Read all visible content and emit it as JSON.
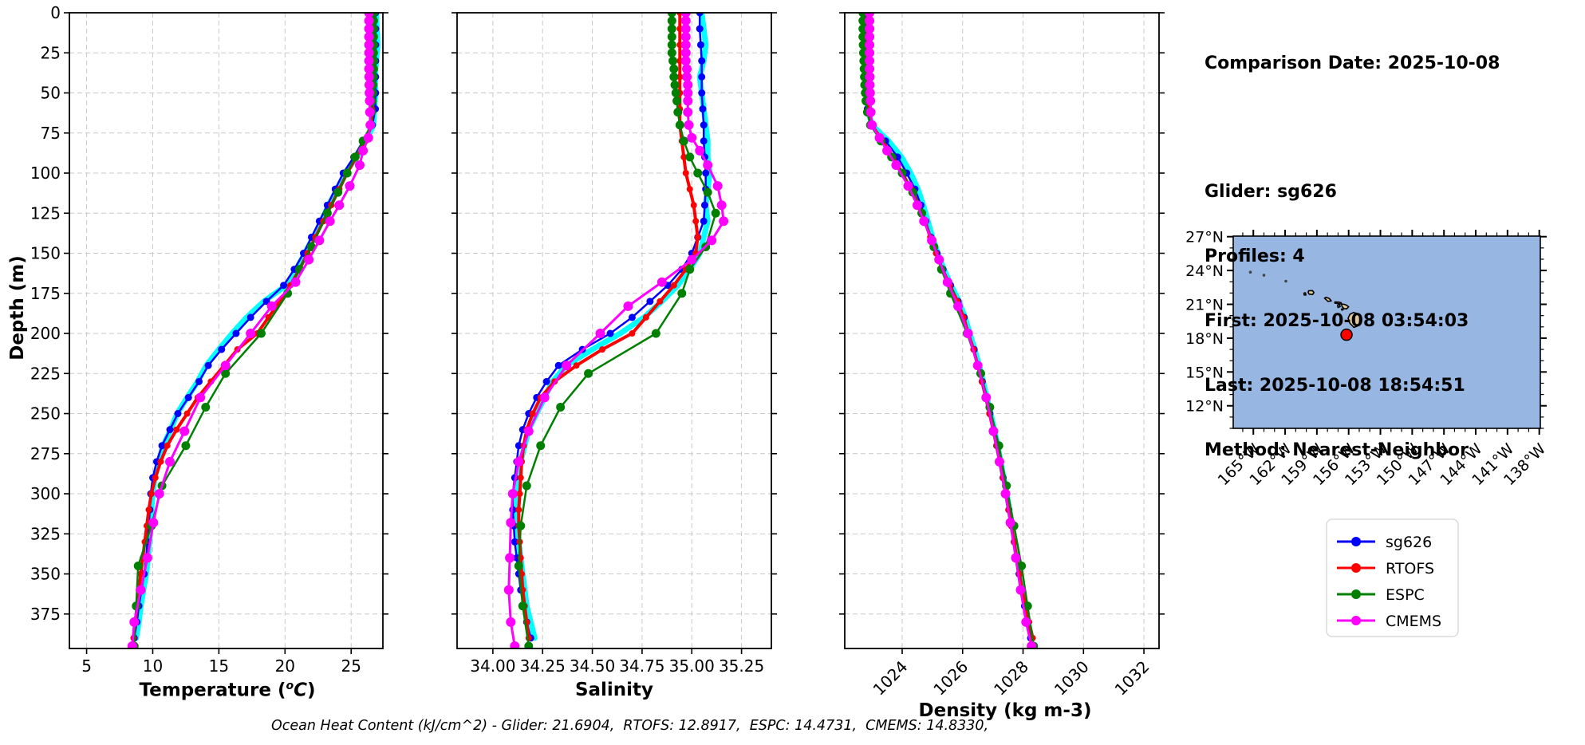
{
  "info_panel": {
    "date_line": "Comparison Date: 2025-10-08",
    "glider_line": "Glider: sg626",
    "profiles_line": "Profiles: 4",
    "first_line": "First: 2025-10-08 03:54:03",
    "last_line": "Last: 2025-10-08 18:54:51",
    "method_line": "Method: Nearest-Neighbor"
  },
  "caption": "Ocean Heat Content (kJ/cm^2) - Glider: 21.6904,  RTOFS: 12.8917,  ESPC: 14.4731,  CMEMS: 14.8330,",
  "chart_data": {
    "type": "line",
    "grid": true,
    "grid_style": "dashed",
    "ylabel": "Depth (m)",
    "ylim": [
      0,
      396.5
    ],
    "ytick_values": [
      0,
      25,
      50,
      75,
      100,
      125,
      150,
      175,
      200,
      225,
      250,
      275,
      300,
      325,
      350,
      375
    ],
    "ytick_labels": [
      "0",
      "25",
      "50",
      "75",
      "100",
      "125",
      "150",
      "175",
      "200",
      "225",
      "250",
      "275",
      "300",
      "325",
      "350",
      "375"
    ],
    "panels": [
      {
        "id": "temperature",
        "var": "temperature",
        "xlabel_prefix": "Temperature (",
        "xlabel_sup": "o",
        "xlabel_mid": "C",
        "xlabel_suffix": ")",
        "xlim": [
          3.7,
          27.4
        ],
        "tick_values": [
          5,
          10,
          15,
          20,
          25
        ],
        "tick_labels": [
          "5",
          "10",
          "15",
          "20",
          "25"
        ],
        "rotate_ticks": false
      },
      {
        "id": "salinity",
        "var": "salinity",
        "xlabel": "Salinity",
        "xlim": [
          33.82,
          35.4
        ],
        "tick_values": [
          34.0,
          34.25,
          34.5,
          34.75,
          35.0,
          35.25
        ],
        "tick_labels": [
          "34.00",
          "34.25",
          "34.50",
          "34.75",
          "35.00",
          "35.25"
        ],
        "rotate_ticks": false
      },
      {
        "id": "density",
        "var": "density",
        "xlabel": "Density (kg m-3)",
        "xlim": [
          1022.1,
          1032.5
        ],
        "tick_values": [
          1024,
          1026,
          1028,
          1030,
          1032
        ],
        "tick_labels": [
          "1024",
          "1026",
          "1028",
          "1030",
          "1032"
        ],
        "rotate_ticks": true
      }
    ],
    "series": [
      {
        "name": "sg626_raw",
        "legend": false,
        "color": "#00ffff",
        "line_width": 7,
        "marker_r": 0,
        "depths": [
          0,
          10,
          20,
          30,
          40,
          50,
          60,
          70,
          80,
          90,
          100,
          110,
          120,
          130,
          140,
          150,
          160,
          170,
          180,
          190,
          200,
          210,
          220,
          230,
          240,
          250,
          260,
          270,
          280,
          290,
          300,
          310,
          320,
          330,
          340,
          350,
          360,
          370,
          380,
          390
        ],
        "temperature": [
          26.9,
          26.95,
          27.0,
          26.9,
          26.8,
          26.85,
          26.75,
          26.7,
          26.1,
          25.4,
          24.55,
          23.95,
          23.3,
          22.75,
          22.15,
          21.5,
          20.85,
          20.1,
          18.4,
          17.1,
          16.0,
          15.0,
          14.05,
          13.4,
          12.6,
          11.85,
          11.35,
          10.8,
          10.45,
          10.15,
          10.0,
          9.9,
          9.85,
          9.75,
          9.65,
          9.5,
          9.3,
          9.1,
          8.95,
          8.75
        ],
        "salinity": [
          35.05,
          35.06,
          35.07,
          35.06,
          35.04,
          35.05,
          35.06,
          35.07,
          35.08,
          35.08,
          35.09,
          35.08,
          35.07,
          35.08,
          35.06,
          35.04,
          34.99,
          34.93,
          34.85,
          34.76,
          34.64,
          34.5,
          34.37,
          34.3,
          34.26,
          34.22,
          34.18,
          34.16,
          34.14,
          34.13,
          34.12,
          34.11,
          34.12,
          34.13,
          34.14,
          34.15,
          34.16,
          34.17,
          34.19,
          34.21
        ],
        "density": [
          1022.82,
          1022.84,
          1022.85,
          1022.83,
          1022.8,
          1022.82,
          1022.86,
          1023.0,
          1023.55,
          1023.98,
          1024.28,
          1024.52,
          1024.7,
          1024.85,
          1025.0,
          1025.18,
          1025.38,
          1025.62,
          1025.88,
          1026.08,
          1026.24,
          1026.4,
          1026.55,
          1026.68,
          1026.8,
          1026.93,
          1027.05,
          1027.16,
          1027.26,
          1027.36,
          1027.46,
          1027.55,
          1027.64,
          1027.73,
          1027.81,
          1027.89,
          1027.97,
          1028.07,
          1028.17,
          1028.28
        ]
      },
      {
        "name": "sg626",
        "color": "#0000ff",
        "line_width": 2.5,
        "marker_r": 4.5,
        "depths": [
          0,
          10,
          20,
          30,
          40,
          50,
          60,
          70,
          80,
          90,
          100,
          110,
          120,
          130,
          140,
          150,
          160,
          170,
          180,
          190,
          200,
          210,
          220,
          230,
          240,
          250,
          260,
          270,
          280,
          290,
          300,
          310,
          320,
          330,
          340,
          350,
          360,
          370,
          380,
          390
        ],
        "temperature": [
          26.85,
          26.85,
          26.85,
          26.85,
          26.85,
          26.85,
          26.83,
          26.6,
          25.9,
          25.2,
          24.4,
          23.8,
          23.2,
          22.6,
          22.0,
          21.4,
          20.7,
          19.9,
          18.6,
          17.4,
          16.3,
          15.2,
          14.2,
          13.5,
          12.7,
          11.9,
          11.3,
          10.7,
          10.3,
          10.0,
          9.85,
          9.78,
          9.7,
          9.6,
          9.5,
          9.35,
          9.15,
          8.95,
          8.8,
          8.6
        ],
        "salinity": [
          35.04,
          35.04,
          35.045,
          35.05,
          35.05,
          35.05,
          35.055,
          35.06,
          35.06,
          35.065,
          35.07,
          35.07,
          35.065,
          35.06,
          35.03,
          35.0,
          34.95,
          34.88,
          34.79,
          34.7,
          34.59,
          34.45,
          34.33,
          34.27,
          34.22,
          34.18,
          34.15,
          34.13,
          34.12,
          34.11,
          34.1,
          34.1,
          34.105,
          34.11,
          34.12,
          34.13,
          34.14,
          34.155,
          34.17,
          34.19
        ],
        "density": [
          1022.8,
          1022.8,
          1022.8,
          1022.81,
          1022.82,
          1022.83,
          1022.85,
          1022.95,
          1023.45,
          1023.85,
          1024.15,
          1024.42,
          1024.62,
          1024.78,
          1024.95,
          1025.15,
          1025.35,
          1025.6,
          1025.85,
          1026.05,
          1026.2,
          1026.38,
          1026.52,
          1026.65,
          1026.78,
          1026.9,
          1027.02,
          1027.13,
          1027.24,
          1027.34,
          1027.44,
          1027.53,
          1027.62,
          1027.71,
          1027.79,
          1027.87,
          1027.95,
          1028.05,
          1028.15,
          1028.25
        ]
      },
      {
        "name": "RTOFS",
        "color": "#ff0000",
        "line_width": 4,
        "marker_r": 4,
        "depths": [
          0,
          10,
          20,
          30,
          40,
          50,
          60,
          70,
          80,
          90,
          100,
          110,
          120,
          130,
          140,
          150,
          160,
          170,
          180,
          190,
          200,
          210,
          220,
          230,
          240,
          250,
          260,
          270,
          280,
          290,
          300,
          310,
          320,
          330,
          340,
          350,
          360,
          370,
          380,
          390
        ],
        "temperature": [
          26.6,
          26.6,
          26.6,
          26.6,
          26.6,
          26.6,
          26.58,
          26.55,
          26.1,
          25.4,
          24.7,
          24.1,
          23.5,
          22.9,
          22.3,
          21.7,
          21.1,
          20.4,
          19.6,
          18.75,
          17.9,
          16.4,
          15.4,
          14.4,
          13.4,
          12.6,
          11.8,
          11.1,
          10.6,
          10.2,
          9.9,
          9.7,
          9.55,
          9.4,
          9.25,
          9.1,
          8.95,
          8.8,
          8.7,
          8.55
        ],
        "salinity": [
          34.94,
          34.94,
          34.94,
          34.94,
          34.94,
          34.94,
          34.94,
          34.94,
          34.95,
          34.96,
          34.97,
          34.99,
          35.01,
          35.02,
          35.03,
          35.02,
          34.97,
          34.91,
          34.84,
          34.77,
          34.7,
          34.55,
          34.42,
          34.31,
          34.24,
          34.2,
          34.17,
          34.155,
          34.145,
          34.14,
          34.135,
          34.13,
          34.13,
          34.135,
          34.14,
          34.145,
          34.15,
          34.16,
          34.17,
          34.18
        ],
        "density": [
          1022.85,
          1022.85,
          1022.85,
          1022.85,
          1022.86,
          1022.87,
          1022.88,
          1023.0,
          1023.35,
          1023.7,
          1024.0,
          1024.3,
          1024.55,
          1024.75,
          1024.93,
          1025.12,
          1025.33,
          1025.58,
          1025.83,
          1026.03,
          1026.19,
          1026.36,
          1026.5,
          1026.64,
          1026.77,
          1026.89,
          1027.01,
          1027.12,
          1027.23,
          1027.33,
          1027.43,
          1027.52,
          1027.61,
          1027.7,
          1027.79,
          1027.88,
          1027.97,
          1028.08,
          1028.2,
          1028.32
        ]
      },
      {
        "name": "ESPC",
        "color": "#008000",
        "line_width": 2.5,
        "marker_r": 5.5,
        "depths": [
          0,
          5,
          10,
          15,
          20,
          25,
          30,
          35,
          40,
          45,
          50,
          55,
          62,
          70,
          80,
          90,
          100,
          112,
          125,
          146,
          160,
          175,
          200,
          225,
          246,
          270,
          295,
          320,
          345,
          370,
          395
        ],
        "temperature": [
          26.7,
          26.7,
          26.7,
          26.7,
          26.7,
          26.7,
          26.7,
          26.7,
          26.68,
          26.66,
          26.64,
          26.6,
          26.55,
          26.5,
          25.9,
          25.3,
          24.7,
          24.0,
          23.2,
          22.0,
          21.1,
          20.2,
          18.2,
          15.5,
          14.0,
          12.5,
          10.7,
          9.9,
          8.9,
          8.75,
          8.6
        ],
        "salinity": [
          34.9,
          34.9,
          34.9,
          34.9,
          34.9,
          34.9,
          34.905,
          34.91,
          34.91,
          34.915,
          34.92,
          34.925,
          34.93,
          34.94,
          34.96,
          34.99,
          35.03,
          35.08,
          35.12,
          35.07,
          34.99,
          34.95,
          34.82,
          34.48,
          34.34,
          34.24,
          34.17,
          34.14,
          34.13,
          34.15,
          34.18
        ],
        "density": [
          1022.7,
          1022.7,
          1022.7,
          1022.7,
          1022.71,
          1022.72,
          1022.73,
          1022.74,
          1022.75,
          1022.76,
          1022.78,
          1022.8,
          1022.85,
          1022.95,
          1023.3,
          1023.65,
          1024.0,
          1024.35,
          1024.65,
          1025.05,
          1025.3,
          1025.6,
          1026.15,
          1026.6,
          1026.9,
          1027.2,
          1027.45,
          1027.7,
          1027.95,
          1028.15,
          1028.35
        ]
      },
      {
        "name": "CMEMS",
        "color": "#ff00ff",
        "line_width": 3,
        "marker_r": 6,
        "depths": [
          0,
          5,
          10,
          15,
          20,
          25,
          30,
          35,
          40,
          45,
          50,
          55,
          62,
          70,
          78,
          86,
          95,
          108,
          120,
          130,
          142,
          154,
          168,
          183,
          200,
          220,
          240,
          261,
          280,
          300,
          318,
          340,
          360,
          380,
          395
        ],
        "temperature": [
          26.35,
          26.35,
          26.35,
          26.35,
          26.35,
          26.35,
          26.35,
          26.35,
          26.36,
          26.37,
          26.38,
          26.4,
          26.42,
          26.45,
          26.3,
          25.9,
          25.65,
          24.9,
          24.1,
          23.4,
          22.6,
          21.8,
          20.8,
          19.0,
          17.4,
          15.5,
          13.6,
          12.4,
          11.3,
          10.5,
          10.05,
          9.6,
          9.1,
          8.6,
          8.45
        ],
        "salinity": [
          34.97,
          34.97,
          34.97,
          34.97,
          34.97,
          34.97,
          34.97,
          34.975,
          34.975,
          34.98,
          34.98,
          34.98,
          34.98,
          34.985,
          35.0,
          35.04,
          35.08,
          35.13,
          35.15,
          35.16,
          35.1,
          35.0,
          34.85,
          34.68,
          34.54,
          34.37,
          34.26,
          34.18,
          34.13,
          34.1,
          34.09,
          34.085,
          34.08,
          34.09,
          34.11
        ],
        "density": [
          1022.92,
          1022.92,
          1022.92,
          1022.92,
          1022.92,
          1022.92,
          1022.92,
          1022.92,
          1022.93,
          1022.93,
          1022.94,
          1022.95,
          1022.96,
          1023.0,
          1023.25,
          1023.5,
          1023.8,
          1024.2,
          1024.5,
          1024.72,
          1024.98,
          1025.22,
          1025.5,
          1025.85,
          1026.18,
          1026.5,
          1026.78,
          1027.02,
          1027.22,
          1027.42,
          1027.58,
          1027.76,
          1027.92,
          1028.1,
          1028.28
        ]
      }
    ]
  },
  "map": {
    "ocean_color": "#97b6e1",
    "land_color": "#ddc59e",
    "lat_tick_values": [
      27,
      24,
      21,
      18,
      15,
      12
    ],
    "lat_tick_labels": [
      "27°N",
      "24°N",
      "21°N",
      "18°N",
      "15°N",
      "12°N"
    ],
    "lon_tick_values": [
      165,
      162,
      159,
      156,
      153,
      150,
      147,
      144,
      141,
      138
    ],
    "lon_tick_labels": [
      "165°W",
      "162°W",
      "159°W",
      "156°W",
      "153°W",
      "150°W",
      "147°W",
      "144°W",
      "141°W",
      "138°W"
    ],
    "extent": {
      "lat": [
        10.0,
        27.05
      ],
      "lon_w": [
        166.9,
        137.9
      ]
    },
    "marker": {
      "lat": 18.3,
      "lon_w": 156.2,
      "color": "#ff0000"
    },
    "islands": [
      [
        [
          156.05,
          19.78
        ],
        [
          155.88,
          20.12
        ],
        [
          155.55,
          20.27
        ],
        [
          155.08,
          20.15
        ],
        [
          154.82,
          19.58
        ],
        [
          155.0,
          19.14
        ],
        [
          155.5,
          18.95
        ],
        [
          155.88,
          19.32
        ]
      ],
      [
        [
          156.68,
          21.02
        ],
        [
          156.42,
          21.0
        ],
        [
          156.22,
          20.93
        ],
        [
          156.0,
          20.78
        ],
        [
          156.18,
          20.6
        ],
        [
          156.45,
          20.62
        ],
        [
          156.62,
          20.8
        ]
      ],
      [
        [
          156.68,
          20.58
        ],
        [
          156.52,
          20.6
        ],
        [
          156.54,
          20.49
        ],
        [
          156.66,
          20.5
        ]
      ],
      [
        [
          157.05,
          20.92
        ],
        [
          156.86,
          20.95
        ],
        [
          156.8,
          20.8
        ],
        [
          157.0,
          20.72
        ]
      ],
      [
        [
          157.3,
          21.21
        ],
        [
          156.92,
          21.19
        ],
        [
          156.7,
          21.14
        ],
        [
          156.76,
          21.04
        ],
        [
          157.08,
          21.08
        ],
        [
          157.3,
          21.1
        ]
      ],
      [
        [
          158.12,
          21.62
        ],
        [
          157.82,
          21.52
        ],
        [
          157.64,
          21.3
        ],
        [
          157.96,
          21.26
        ],
        [
          158.28,
          21.55
        ]
      ],
      [
        [
          159.78,
          22.2
        ],
        [
          159.42,
          22.22
        ],
        [
          159.28,
          22.05
        ],
        [
          159.4,
          21.87
        ],
        [
          159.72,
          21.9
        ],
        [
          159.82,
          22.05
        ]
      ],
      [
        [
          160.22,
          22.0
        ],
        [
          160.08,
          22.02
        ],
        [
          160.04,
          21.82
        ],
        [
          160.2,
          21.83
        ]
      ]
    ],
    "islets": [
      [
        165.28,
        23.85
      ],
      [
        164.0,
        23.58
      ],
      [
        161.93,
        23.05
      ]
    ]
  }
}
